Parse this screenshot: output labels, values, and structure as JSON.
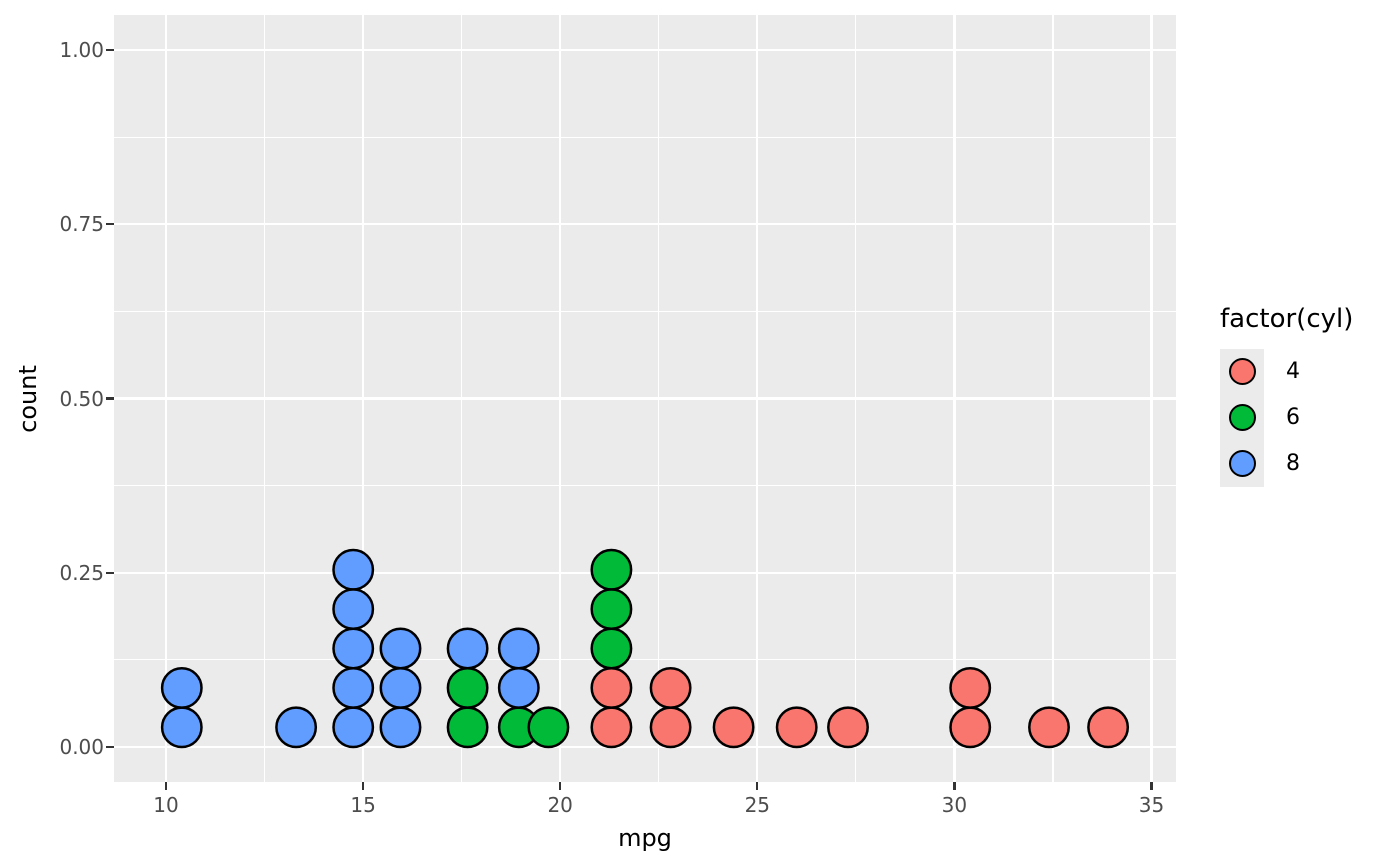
{
  "chart_data": {
    "type": "dotplot",
    "title": "",
    "xlabel": "mpg",
    "ylabel": "count",
    "x_ticks": [
      "10",
      "15",
      "20",
      "25",
      "30",
      "35"
    ],
    "x_tick_values": [
      10,
      15,
      20,
      25,
      30,
      35
    ],
    "x_minor_values": [
      12.5,
      17.5,
      22.5,
      27.5,
      32.5
    ],
    "y_ticks": [
      "0.00",
      "0.25",
      "0.50",
      "0.75",
      "1.00"
    ],
    "y_tick_values": [
      0,
      0.25,
      0.5,
      0.75,
      1.0
    ],
    "y_minor_values": [
      0.125,
      0.375,
      0.625,
      0.875
    ],
    "xlim": [
      8.68,
      35.63
    ],
    "ylim": [
      -0.05,
      1.05
    ],
    "grid": "on",
    "panel_bg": "#EBEBEB",
    "gridline_color": "#ffffff",
    "tick_color": "#333333",
    "tick_label_color": "#4D4D4D",
    "dot_outline_color": "#000000",
    "legend": {
      "title": "factor(cyl)",
      "position": "right",
      "entries": [
        {
          "label": "4",
          "color": "#F8766D"
        },
        {
          "label": "6",
          "color": "#00BA38"
        },
        {
          "label": "8",
          "color": "#619CFF"
        }
      ]
    },
    "series_colors": {
      "4": "#F8766D",
      "6": "#00BA38",
      "8": "#619CFF"
    },
    "stacks": [
      {
        "mpg": 10.4,
        "dots": [
          "8",
          "8"
        ]
      },
      {
        "mpg": 13.3,
        "dots": [
          "8"
        ]
      },
      {
        "mpg": 14.75,
        "dots": [
          "8",
          "8",
          "8",
          "8",
          "8"
        ]
      },
      {
        "mpg": 15.95,
        "dots": [
          "8",
          "8",
          "8"
        ]
      },
      {
        "mpg": 17.65,
        "dots": [
          "6",
          "6",
          "8"
        ]
      },
      {
        "mpg": 18.95,
        "dots": [
          "6",
          "8",
          "8"
        ]
      },
      {
        "mpg": 19.7,
        "dots": [
          "6"
        ]
      },
      {
        "mpg": 21.3,
        "dots": [
          "4",
          "4",
          "6",
          "6",
          "6"
        ]
      },
      {
        "mpg": 22.8,
        "dots": [
          "4",
          "4"
        ]
      },
      {
        "mpg": 24.4,
        "dots": [
          "4"
        ]
      },
      {
        "mpg": 26.0,
        "dots": [
          "4"
        ]
      },
      {
        "mpg": 27.3,
        "dots": [
          "4"
        ]
      },
      {
        "mpg": 30.4,
        "dots": [
          "4",
          "4"
        ]
      },
      {
        "mpg": 32.4,
        "dots": [
          "4"
        ]
      },
      {
        "mpg": 33.9,
        "dots": [
          "4"
        ]
      }
    ]
  }
}
